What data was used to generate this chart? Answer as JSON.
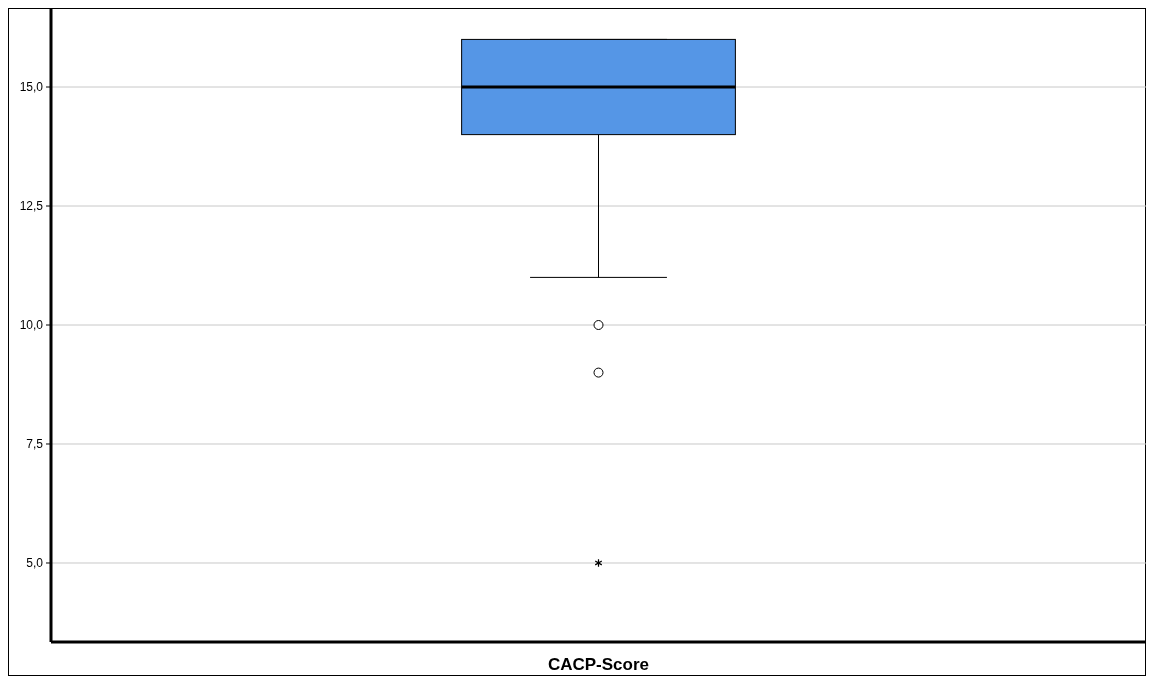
{
  "chart_data": {
    "type": "box",
    "categories": [
      "CACP-Score"
    ],
    "color": "#5596e6",
    "boxes": [
      {
        "low": 11,
        "q1": 14,
        "median": 15,
        "q3": 16,
        "high": 16,
        "outliers": [
          10,
          9,
          5
        ]
      }
    ],
    "ylim": [
      3.34,
      16.66
    ],
    "yticks": [
      {
        "value": 5,
        "label": "5,0"
      },
      {
        "value": 7.5,
        "label": "7,5"
      },
      {
        "value": 10,
        "label": "10,0"
      },
      {
        "value": 12.5,
        "label": "12,5"
      },
      {
        "value": 15,
        "label": "15,0"
      }
    ],
    "grid": "y"
  }
}
